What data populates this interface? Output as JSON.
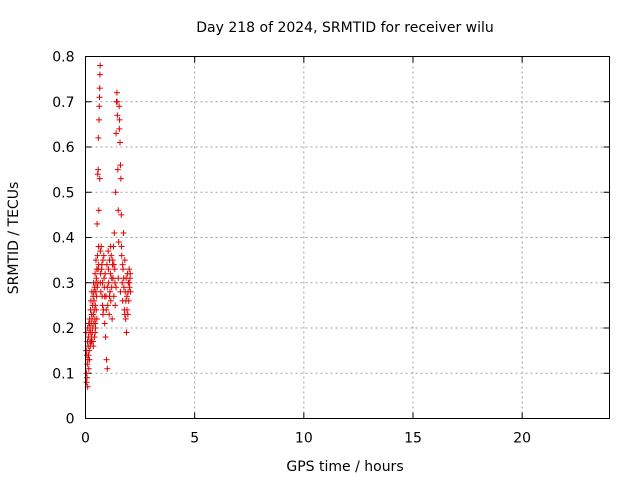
{
  "chart_data": {
    "type": "scatter",
    "title": "Day 218 of 2024, SRMTID for receiver wilu",
    "xlabel": "GPS time / hours",
    "ylabel": "SRMTID / TECUs",
    "xlim": [
      0,
      24
    ],
    "ylim": [
      0,
      0.8
    ],
    "xticks": [
      0,
      5,
      10,
      15,
      20
    ],
    "yticks": [
      0,
      0.1,
      0.2,
      0.3,
      0.4,
      0.5,
      0.6,
      0.7,
      0.8
    ],
    "xtick_labels": [
      "0",
      "5",
      "10",
      "15",
      "20"
    ],
    "ytick_labels": [
      "0",
      "0.1",
      "0.2",
      "0.3",
      "0.4",
      "0.5",
      "0.6",
      "0.7",
      "0.8"
    ],
    "grid": true,
    "marker": "+",
    "color": "#e00000",
    "series": [
      {
        "name": "wilu",
        "points": [
          [
            0.02,
            0.19
          ],
          [
            0.03,
            0.15
          ],
          [
            0.04,
            0.1
          ],
          [
            0.05,
            0.08
          ],
          [
            0.06,
            0.14
          ],
          [
            0.07,
            0.09
          ],
          [
            0.08,
            0.12
          ],
          [
            0.09,
            0.17
          ],
          [
            0.1,
            0.2
          ],
          [
            0.11,
            0.13
          ],
          [
            0.12,
            0.16
          ],
          [
            0.13,
            0.18
          ],
          [
            0.14,
            0.14
          ],
          [
            0.15,
            0.21
          ],
          [
            0.16,
            0.19
          ],
          [
            0.17,
            0.15
          ],
          [
            0.18,
            0.13
          ],
          [
            0.19,
            0.22
          ],
          [
            0.2,
            0.17
          ],
          [
            0.21,
            0.2
          ],
          [
            0.22,
            0.16
          ],
          [
            0.23,
            0.24
          ],
          [
            0.24,
            0.19
          ],
          [
            0.25,
            0.26
          ],
          [
            0.26,
            0.21
          ],
          [
            0.27,
            0.18
          ],
          [
            0.28,
            0.23
          ],
          [
            0.29,
            0.28
          ],
          [
            0.3,
            0.22
          ],
          [
            0.31,
            0.19
          ],
          [
            0.32,
            0.25
          ],
          [
            0.33,
            0.2
          ],
          [
            0.34,
            0.17
          ],
          [
            0.35,
            0.27
          ],
          [
            0.36,
            0.23
          ],
          [
            0.37,
            0.3
          ],
          [
            0.38,
            0.21
          ],
          [
            0.39,
            0.26
          ],
          [
            0.4,
            0.24
          ],
          [
            0.41,
            0.18
          ],
          [
            0.42,
            0.29
          ],
          [
            0.43,
            0.22
          ],
          [
            0.44,
            0.32
          ],
          [
            0.45,
            0.25
          ],
          [
            0.46,
            0.2
          ],
          [
            0.47,
            0.28
          ],
          [
            0.48,
            0.35
          ],
          [
            0.49,
            0.24
          ],
          [
            0.5,
            0.31
          ],
          [
            0.51,
            0.27
          ],
          [
            0.52,
            0.33
          ],
          [
            0.53,
            0.43
          ],
          [
            0.54,
            0.29
          ],
          [
            0.55,
            0.36
          ],
          [
            0.56,
            0.54
          ],
          [
            0.57,
            0.3
          ],
          [
            0.58,
            0.55
          ],
          [
            0.59,
            0.62
          ],
          [
            0.6,
            0.34
          ],
          [
            0.61,
            0.46
          ],
          [
            0.62,
            0.66
          ],
          [
            0.63,
            0.69
          ],
          [
            0.64,
            0.71
          ],
          [
            0.65,
            0.73
          ],
          [
            0.66,
            0.76
          ],
          [
            0.67,
            0.78
          ],
          [
            0.68,
            0.37
          ],
          [
            0.69,
            0.32
          ],
          [
            0.7,
            0.28
          ],
          [
            0.72,
            0.38
          ],
          [
            0.74,
            0.33
          ],
          [
            0.76,
            0.27
          ],
          [
            0.78,
            0.3
          ],
          [
            0.8,
            0.35
          ],
          [
            0.82,
            0.24
          ],
          [
            0.84,
            0.36
          ],
          [
            0.86,
            0.29
          ],
          [
            0.88,
            0.21
          ],
          [
            0.9,
            0.32
          ],
          [
            0.92,
            0.18
          ],
          [
            0.94,
            0.27
          ],
          [
            0.96,
            0.13
          ],
          [
            0.98,
            0.34
          ],
          [
            1.0,
            0.11
          ],
          [
            1.02,
            0.25
          ],
          [
            1.04,
            0.37
          ],
          [
            1.06,
            0.3
          ],
          [
            1.08,
            0.23
          ],
          [
            1.1,
            0.35
          ],
          [
            1.12,
            0.28
          ],
          [
            1.14,
            0.32
          ],
          [
            1.16,
            0.26
          ],
          [
            1.18,
            0.36
          ],
          [
            1.2,
            0.29
          ],
          [
            1.22,
            0.22
          ],
          [
            1.24,
            0.34
          ],
          [
            1.26,
            0.31
          ],
          [
            1.28,
            0.38
          ],
          [
            1.3,
            0.27
          ],
          [
            1.32,
            0.41
          ],
          [
            1.34,
            0.33
          ],
          [
            1.36,
            0.25
          ],
          [
            1.38,
            0.5
          ],
          [
            1.4,
            0.63
          ],
          [
            1.42,
            0.7
          ],
          [
            1.44,
            0.72
          ],
          [
            1.46,
            0.67
          ],
          [
            1.48,
            0.55
          ],
          [
            1.5,
            0.46
          ],
          [
            1.52,
            0.39
          ],
          [
            1.54,
            0.69
          ],
          [
            1.56,
            0.66
          ],
          [
            1.58,
            0.61
          ],
          [
            1.6,
            0.56
          ],
          [
            1.62,
            0.53
          ],
          [
            1.64,
            0.45
          ],
          [
            1.66,
            0.36
          ],
          [
            1.68,
            0.3
          ],
          [
            1.7,
            0.26
          ],
          [
            1.72,
            0.33
          ],
          [
            1.74,
            0.41
          ],
          [
            1.76,
            0.29
          ],
          [
            1.78,
            0.24
          ],
          [
            1.8,
            0.35
          ],
          [
            1.82,
            0.28
          ],
          [
            1.84,
            0.22
          ],
          [
            1.86,
            0.31
          ],
          [
            1.88,
            0.19
          ],
          [
            1.9,
            0.27
          ],
          [
            1.92,
            0.32
          ],
          [
            1.94,
            0.23
          ],
          [
            1.96,
            0.3
          ],
          [
            1.98,
            0.26
          ],
          [
            2.0,
            0.33
          ],
          [
            2.02,
            0.29
          ],
          [
            2.04,
            0.31
          ],
          [
            2.06,
            0.28
          ],
          [
            0.36,
            0.16
          ],
          [
            0.44,
            0.19
          ],
          [
            0.52,
            0.22
          ],
          [
            0.8,
            0.23
          ],
          [
            0.88,
            0.27
          ],
          [
            1.0,
            0.29
          ],
          [
            1.1,
            0.27
          ],
          [
            1.2,
            0.31
          ],
          [
            1.3,
            0.34
          ],
          [
            1.4,
            0.29
          ],
          [
            1.5,
            0.31
          ],
          [
            1.6,
            0.28
          ],
          [
            1.7,
            0.34
          ],
          [
            1.8,
            0.23
          ],
          [
            1.9,
            0.24
          ],
          [
            2.0,
            0.3
          ],
          [
            0.65,
            0.53
          ],
          [
            1.45,
            0.7
          ],
          [
            1.55,
            0.64
          ],
          [
            0.15,
            0.11
          ],
          [
            0.25,
            0.17
          ],
          [
            0.45,
            0.21
          ],
          [
            0.6,
            0.38
          ],
          [
            0.75,
            0.34
          ],
          [
            0.85,
            0.31
          ],
          [
            0.95,
            0.24
          ],
          [
            1.05,
            0.33
          ],
          [
            1.15,
            0.38
          ],
          [
            1.25,
            0.35
          ],
          [
            1.35,
            0.3
          ],
          [
            1.65,
            0.38
          ],
          [
            1.75,
            0.31
          ],
          [
            1.85,
            0.26
          ],
          [
            1.95,
            0.28
          ],
          [
            2.05,
            0.32
          ],
          [
            0.1,
            0.07
          ],
          [
            0.18,
            0.21
          ],
          [
            0.28,
            0.17
          ],
          [
            0.38,
            0.28
          ],
          [
            0.48,
            0.3
          ],
          [
            0.58,
            0.33
          ],
          [
            0.68,
            0.3
          ],
          [
            0.78,
            0.25
          ]
        ]
      }
    ]
  }
}
